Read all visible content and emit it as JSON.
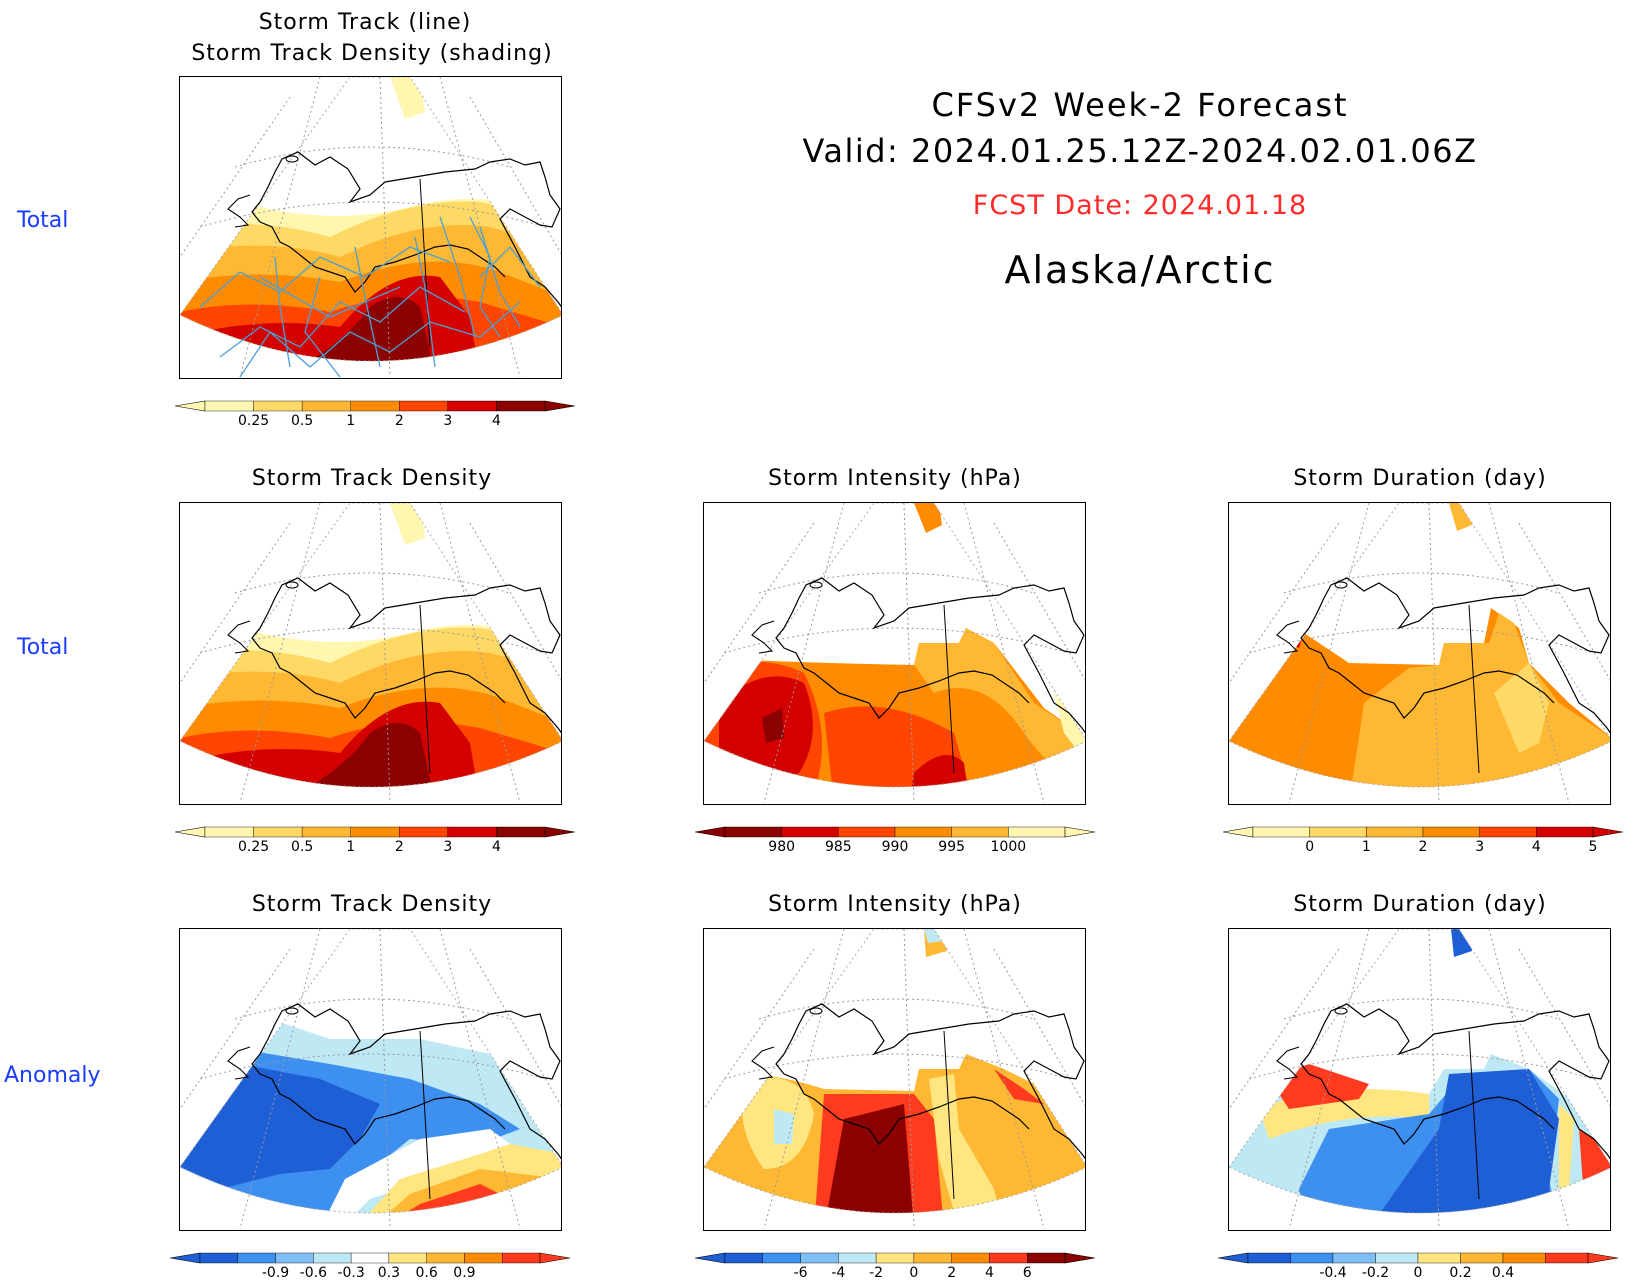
{
  "header": {
    "title": "CFSv2 Week-2 Forecast",
    "valid": "Valid: 2024.01.25.12Z-2024.02.01.06Z",
    "fcst_date": "FCST Date: 2024.01.18",
    "region": "Alaska/Arctic"
  },
  "row_labels": {
    "row1": "Total",
    "row2": "Total",
    "row3": "Anomaly"
  },
  "panels": {
    "track": {
      "title_line1": "Storm Track (line)",
      "title_line2": "Storm Track Density (shading)"
    },
    "density_total": {
      "title": "Storm Track Density"
    },
    "intensity_total": {
      "title": "Storm Intensity (hPa)"
    },
    "duration_total": {
      "title": "Storm Duration (day)"
    },
    "density_anom": {
      "title": "Storm Track Density"
    },
    "intensity_anom": {
      "title": "Storm Intensity (hPa)"
    },
    "duration_anom": {
      "title": "Storm Duration (day)"
    }
  },
  "colorbars": {
    "density": {
      "ticks": [
        "0.25",
        "0.5",
        "1",
        "2",
        "3",
        "4"
      ],
      "colors": [
        "#fff7b0",
        "#ffd966",
        "#ffb833",
        "#ff8c00",
        "#ff4500",
        "#d40000",
        "#8b0000"
      ]
    },
    "intensity": {
      "ticks": [
        "980",
        "985",
        "990",
        "995",
        "1000"
      ],
      "colors": [
        "#8b0000",
        "#d40000",
        "#ff4500",
        "#ff8c00",
        "#ffb833",
        "#fff7b0"
      ]
    },
    "duration": {
      "ticks": [
        "0",
        "1",
        "2",
        "3",
        "4",
        "5"
      ],
      "colors": [
        "#fff7b0",
        "#ffd966",
        "#ffb833",
        "#ff8c00",
        "#ff4500",
        "#d40000"
      ]
    },
    "density_anom": {
      "ticks": [
        "-0.9",
        "-0.6",
        "-0.3",
        "0.3",
        "0.6",
        "0.9"
      ],
      "colors": [
        "#1f5fd6",
        "#3d8ff0",
        "#7ec0f5",
        "#bfe8f5",
        "#ffffff",
        "#ffe680",
        "#ffb833",
        "#ff8c00",
        "#ff3b1f"
      ]
    },
    "intensity_anom": {
      "ticks": [
        "-6",
        "-4",
        "-2",
        "0",
        "2",
        "4",
        "6"
      ],
      "colors": [
        "#1f5fd6",
        "#3d8ff0",
        "#7ec0f5",
        "#bfe8f5",
        "#ffe680",
        "#ffb833",
        "#ff8c00",
        "#ff3b1f",
        "#8b0000"
      ]
    },
    "duration_anom": {
      "ticks": [
        "-0.4",
        "-0.2",
        "0",
        "0.2",
        "0.4"
      ],
      "colors": [
        "#1f5fd6",
        "#3d8ff0",
        "#7ec0f5",
        "#bfe8f5",
        "#ffe680",
        "#ffb833",
        "#ff8c00",
        "#ff3b1f"
      ]
    }
  }
}
